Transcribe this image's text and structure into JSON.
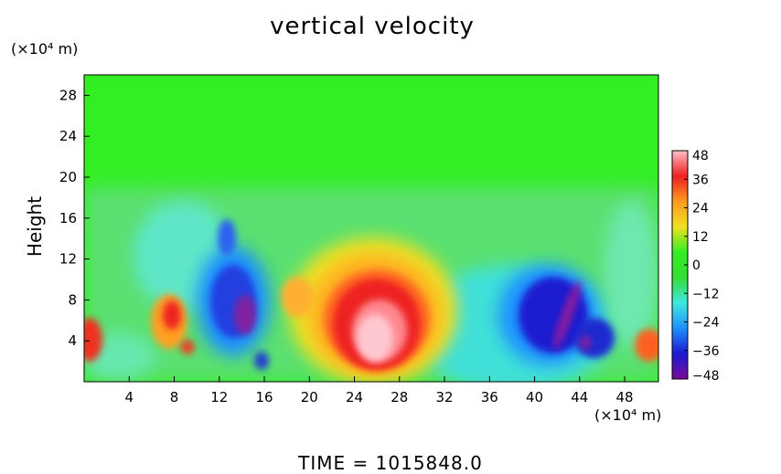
{
  "chart_data": {
    "type": "heatmap",
    "title": "vertical velocity",
    "ylabel": "Height",
    "x_unit": "(×10⁴ m)",
    "y_unit": "(×10⁴ m)",
    "x_ticks": [
      4,
      8,
      12,
      16,
      20,
      24,
      28,
      32,
      36,
      40,
      44,
      48
    ],
    "y_ticks": [
      4,
      8,
      12,
      16,
      20,
      24,
      28
    ],
    "xlim": [
      0,
      51
    ],
    "ylim": [
      0,
      30
    ],
    "colorbar": {
      "ticks": [
        48,
        36,
        24,
        12,
        0,
        -12,
        -24,
        -36,
        -48
      ],
      "tick_labels": [
        "48",
        "36",
        "24",
        "12",
        "0",
        "−12",
        "−24",
        "−36",
        "−48"
      ],
      "range": [
        -48,
        48
      ],
      "colors": [
        "#7a0a9a",
        "#1a1ad0",
        "#1e90ff",
        "#3fe8e0",
        "#33dd33",
        "#33ee22",
        "#f0e020",
        "#ff9a20",
        "#ee2020",
        "#ffc0c8"
      ]
    },
    "features": [
      {
        "x": 26,
        "y": 3.5,
        "value": 48
      },
      {
        "x": 27.5,
        "y": 6,
        "value": 30
      },
      {
        "x": 14,
        "y": 6,
        "value": -48
      },
      {
        "x": 41,
        "y": 4,
        "value": -40
      },
      {
        "x": 43,
        "y": 5,
        "value": -48
      },
      {
        "x": 0.5,
        "y": 3.5,
        "value": 32
      },
      {
        "x": 8,
        "y": 6,
        "value": 30
      },
      {
        "x": 50.5,
        "y": 3,
        "value": 30
      }
    ]
  },
  "footer": "TIME  =  1015848.0"
}
